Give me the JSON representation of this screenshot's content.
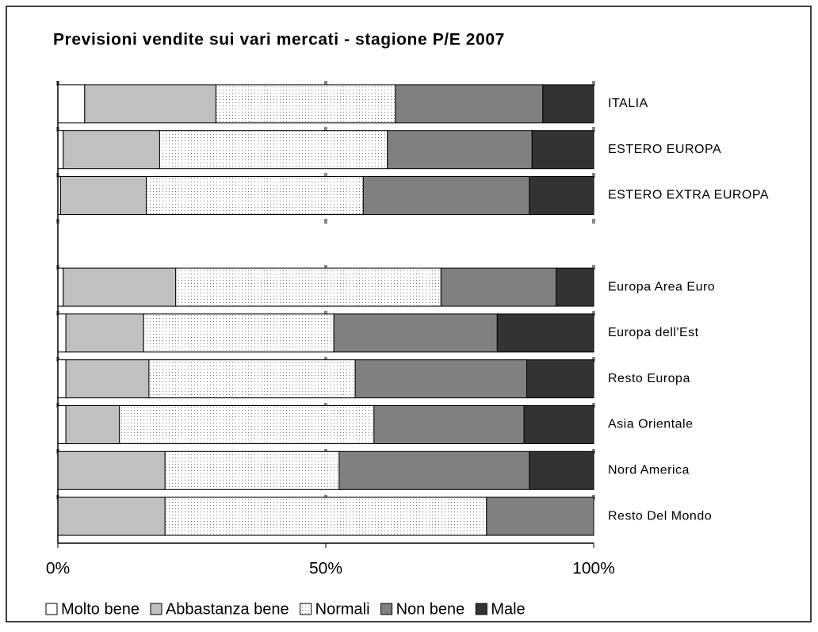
{
  "chart_data": {
    "type": "stacked_barh_100",
    "title": "Previsioni vendite sui vari mercati - stagione P/E 2007",
    "categories": [
      "ITALIA",
      "ESTERO EUROPA",
      "ESTERO EXTRA EUROPA",
      null,
      "Europa Area Euro",
      "Europa dell'Est",
      "Resto Europa",
      "Asia Orientale",
      "Nord America",
      "Resto Del Mondo"
    ],
    "series": [
      {
        "name": "Molto bene",
        "color": "#ffffff",
        "values": [
          5,
          1,
          0.5,
          null,
          1,
          1.5,
          1.5,
          1.5,
          0,
          0
        ]
      },
      {
        "name": "Abbastanza bene",
        "color": "#c0c0c0",
        "values": [
          24.5,
          18,
          16,
          null,
          21,
          14.5,
          15.5,
          10,
          20,
          20
        ]
      },
      {
        "name": "Normali",
        "color": "#ffffff",
        "pattern": "dotted",
        "values": [
          33.5,
          42.5,
          40.5,
          null,
          49.5,
          35.5,
          38.5,
          47.5,
          32.5,
          60
        ]
      },
      {
        "name": "Non bene",
        "color": "#808080",
        "values": [
          27.5,
          27,
          31,
          null,
          21.5,
          30.5,
          32,
          28,
          35.5,
          20
        ]
      },
      {
        "name": "Male",
        "color": "#333333",
        "values": [
          9.5,
          11.5,
          12,
          null,
          7,
          18,
          12.5,
          13,
          12,
          0
        ]
      }
    ],
    "xlim": [
      0,
      100
    ],
    "xticks": [
      {
        "value": 0,
        "label": "0%"
      },
      {
        "value": 50,
        "label": "50%"
      },
      {
        "value": 100,
        "label": "100%"
      }
    ],
    "grid": true,
    "legend": "bottom"
  }
}
